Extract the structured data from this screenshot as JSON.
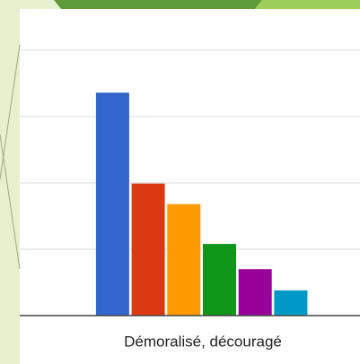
{
  "chart_data": {
    "type": "bar",
    "categories": [
      "Démoralisé, découragé"
    ],
    "series": [
      {
        "color": "#3366cc",
        "values": [
          3.36
        ]
      },
      {
        "color": "#dc3912",
        "values": [
          1.99
        ]
      },
      {
        "color": "#ff9900",
        "values": [
          1.68
        ]
      },
      {
        "color": "#109618",
        "values": [
          1.08
        ]
      },
      {
        "color": "#990099",
        "values": [
          0.7
        ]
      },
      {
        "color": "#0099c6",
        "values": [
          0.38
        ]
      }
    ],
    "ylim": [
      0,
      4
    ],
    "yticks": [
      0,
      1,
      2,
      3,
      4
    ],
    "grid": true
  }
}
